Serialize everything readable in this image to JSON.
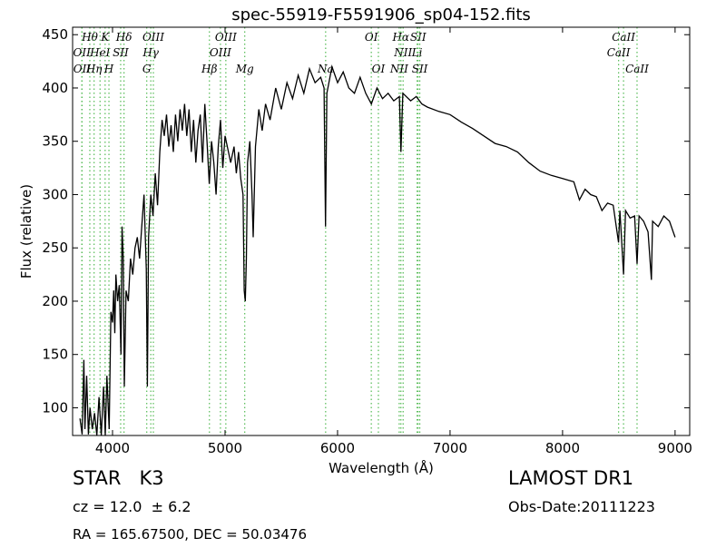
{
  "chart_data": {
    "type": "line",
    "title": "spec-55919-F5591906_sp04-152.fits",
    "xlabel": "Wavelength (Å)",
    "ylabel": "Flux (relative)",
    "xlim": [
      3645,
      9130
    ],
    "ylim": [
      74,
      457
    ],
    "xticks": [
      4000,
      5000,
      6000,
      7000,
      8000,
      9000
    ],
    "yticks": [
      100,
      150,
      200,
      250,
      300,
      350,
      400,
      450
    ],
    "color": "#000000",
    "marker_color": "#55bb55",
    "x": [
      3710,
      3730,
      3745,
      3755,
      3770,
      3785,
      3800,
      3820,
      3840,
      3860,
      3880,
      3900,
      3920,
      3935,
      3950,
      3970,
      3985,
      4000,
      4010,
      4020,
      4030,
      4045,
      4060,
      4075,
      4085,
      4095,
      4105,
      4120,
      4140,
      4160,
      4180,
      4200,
      4220,
      4240,
      4260,
      4280,
      4300,
      4310,
      4320,
      4340,
      4360,
      4380,
      4400,
      4420,
      4440,
      4460,
      4480,
      4500,
      4520,
      4540,
      4560,
      4580,
      4600,
      4620,
      4640,
      4660,
      4680,
      4700,
      4720,
      4740,
      4760,
      4780,
      4800,
      4820,
      4840,
      4860,
      4880,
      4900,
      4920,
      4940,
      4960,
      4980,
      5000,
      5020,
      5050,
      5080,
      5100,
      5120,
      5140,
      5160,
      5170,
      5180,
      5190,
      5200,
      5220,
      5240,
      5250,
      5270,
      5300,
      5330,
      5360,
      5400,
      5450,
      5500,
      5550,
      5600,
      5650,
      5700,
      5750,
      5800,
      5850,
      5880,
      5893,
      5905,
      5950,
      6000,
      6050,
      6100,
      6150,
      6200,
      6250,
      6300,
      6350,
      6400,
      6450,
      6500,
      6550,
      6563,
      6580,
      6650,
      6700,
      6750,
      6800,
      6900,
      7000,
      7100,
      7200,
      7300,
      7400,
      7500,
      7600,
      7700,
      7800,
      7900,
      8000,
      8100,
      8150,
      8200,
      8250,
      8300,
      8350,
      8400,
      8450,
      8498,
      8510,
      8542,
      8560,
      8600,
      8640,
      8662,
      8680,
      8720,
      8760,
      8790,
      8800,
      8850,
      8900,
      8950,
      9000
    ],
    "values": [
      90,
      75,
      145,
      80,
      130,
      75,
      100,
      80,
      95,
      74,
      110,
      74,
      120,
      74,
      130,
      80,
      190,
      180,
      210,
      170,
      225,
      200,
      215,
      150,
      270,
      240,
      120,
      210,
      200,
      240,
      225,
      250,
      260,
      240,
      270,
      300,
      230,
      120,
      260,
      300,
      280,
      320,
      290,
      340,
      370,
      355,
      375,
      345,
      365,
      340,
      375,
      350,
      380,
      360,
      385,
      355,
      380,
      340,
      370,
      330,
      360,
      375,
      330,
      385,
      350,
      310,
      350,
      330,
      300,
      345,
      370,
      325,
      355,
      345,
      330,
      345,
      320,
      340,
      315,
      300,
      210,
      200,
      240,
      330,
      350,
      300,
      260,
      345,
      380,
      360,
      385,
      370,
      400,
      380,
      405,
      390,
      412,
      395,
      418,
      405,
      410,
      400,
      270,
      395,
      420,
      405,
      415,
      400,
      395,
      410,
      395,
      385,
      400,
      390,
      395,
      388,
      392,
      340,
      395,
      388,
      392,
      385,
      382,
      378,
      375,
      368,
      362,
      355,
      348,
      345,
      340,
      330,
      322,
      318,
      315,
      312,
      295,
      305,
      300,
      298,
      285,
      292,
      290,
      255,
      285,
      225,
      285,
      278,
      280,
      235,
      280,
      275,
      265,
      220,
      275,
      270,
      280,
      275,
      260
    ],
    "lines": [
      {
        "label": "Hθ",
        "x": 3798
      },
      {
        "label": "K",
        "x": 3934
      },
      {
        "label": "Hδ",
        "x": 4102
      },
      {
        "label": "OIII",
        "x": 4363
      },
      {
        "label": "OIII",
        "x": 5007
      },
      {
        "label": "OI",
        "x": 6300
      },
      {
        "label": "Hα",
        "x": 6563
      },
      {
        "label": "SII",
        "x": 6716
      },
      {
        "label": "CaII",
        "x": 8542
      },
      {
        "label": "OII",
        "x": 3727
      },
      {
        "label": "HeI",
        "x": 3889
      },
      {
        "label": "SII",
        "x": 4072
      },
      {
        "label": "Hγ",
        "x": 4340
      },
      {
        "label": "OIII",
        "x": 4959
      },
      {
        "label": "NII",
        "x": 6583
      },
      {
        "label": "Li",
        "x": 6707
      },
      {
        "label": "CaII",
        "x": 8498
      },
      {
        "label": "OII",
        "x": 3729
      },
      {
        "label": "Hη",
        "x": 3836
      },
      {
        "label": "H",
        "x": 3968
      },
      {
        "label": "G",
        "x": 4304
      },
      {
        "label": "Hβ",
        "x": 4861
      },
      {
        "label": "Mg",
        "x": 5175
      },
      {
        "label": "Na",
        "x": 5894
      },
      {
        "label": "OI",
        "x": 6363
      },
      {
        "label": "NII",
        "x": 6548
      },
      {
        "label": "SII",
        "x": 6731
      },
      {
        "label": "CaII",
        "x": 8662
      }
    ],
    "info": {
      "object": "STAR   K3",
      "redshift": "cz = 12.0  ± 6.2",
      "coords": "RA = 165.67500, DEC = 50.03476",
      "survey": "LAMOST DR1",
      "date": "Obs-Date:20111223"
    }
  }
}
